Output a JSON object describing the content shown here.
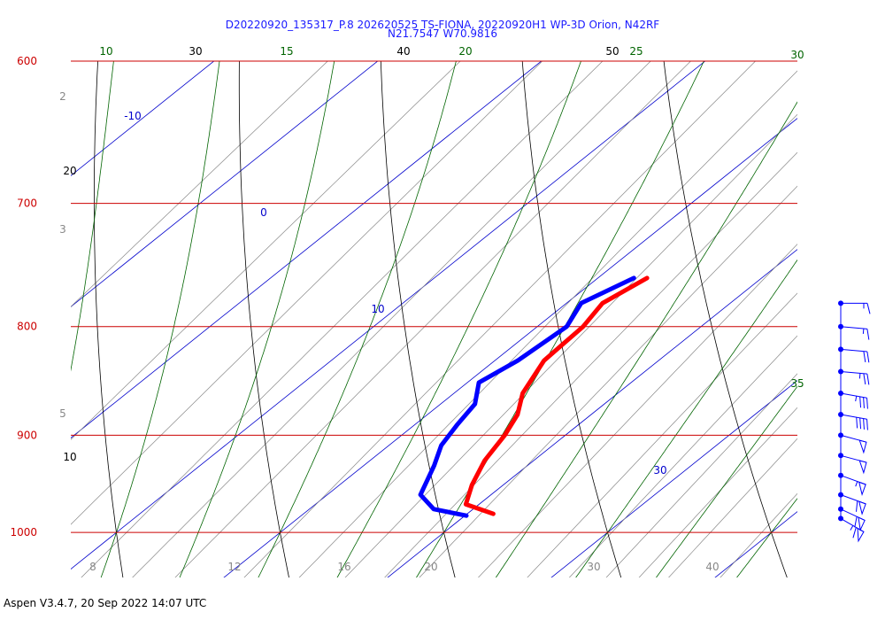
{
  "title_line1": "D20220920_135317_P.8 202620525 TS-FIONA, 20220920H1 WP-3D Orion, N42RF",
  "title_line2": "N21.7547 W70.9816",
  "footer": "Aspen V3.4.7, 20 Sep 2022  14:07 UTC",
  "colors": {
    "isobar": "#cc0000",
    "dry_adiabat": "#000000",
    "moist_adiabat": "#006400",
    "isotherm": "#0000cc",
    "mixing_ratio": "#888888",
    "temperature": "#ff0000",
    "dewpoint": "#0000ff",
    "wind": "#0000ff"
  },
  "chart_data": {
    "type": "line",
    "subtype": "skew-t log-p thermodynamic diagram",
    "pressure_levels": [
      "600",
      "700",
      "800",
      "900",
      "1000"
    ],
    "pressure_range": [
      600,
      1050
    ],
    "isotherm_labels": [
      "-10",
      "0",
      "10",
      "30"
    ],
    "dry_adiabat_labels": [
      "30",
      "40",
      "50",
      "20",
      "10"
    ],
    "moist_adiabat_labels": [
      "10",
      "15",
      "20",
      "25",
      "30",
      "35"
    ],
    "mixing_ratio_top_labels": [
      "2",
      "3",
      "5"
    ],
    "mixing_ratio_bottom_labels": [
      "8",
      "12",
      "16",
      "20",
      "30",
      "40"
    ],
    "series": [
      {
        "kind": "temperature",
        "points": [
          {
            "p": 759,
            "t": 13.0
          },
          {
            "p": 780,
            "t": 12.2
          },
          {
            "p": 800,
            "t": 12.8
          },
          {
            "p": 830,
            "t": 13.0
          },
          {
            "p": 860,
            "t": 14.2
          },
          {
            "p": 880,
            "t": 15.5
          },
          {
            "p": 900,
            "t": 16.3
          },
          {
            "p": 925,
            "t": 17.0
          },
          {
            "p": 950,
            "t": 18.1
          },
          {
            "p": 970,
            "t": 19.2
          },
          {
            "p": 980,
            "t": 21.6
          }
        ]
      },
      {
        "kind": "dewpoint",
        "points": [
          {
            "p": 759,
            "t": 12.2
          },
          {
            "p": 780,
            "t": 10.9
          },
          {
            "p": 800,
            "t": 11.8
          },
          {
            "p": 830,
            "t": 11.4
          },
          {
            "p": 850,
            "t": 10.7
          },
          {
            "p": 870,
            "t": 12.1
          },
          {
            "p": 890,
            "t": 12.6
          },
          {
            "p": 910,
            "t": 13.2
          },
          {
            "p": 930,
            "t": 14.3
          },
          {
            "p": 960,
            "t": 15.7
          },
          {
            "p": 975,
            "t": 17.6
          },
          {
            "p": 982,
            "t": 20.1
          }
        ]
      }
    ],
    "wind_barbs": [
      {
        "p": 780,
        "dir": 90,
        "kt": 15
      },
      {
        "p": 800,
        "dir": 95,
        "kt": 15
      },
      {
        "p": 820,
        "dir": 95,
        "kt": 20
      },
      {
        "p": 840,
        "dir": 95,
        "kt": 25
      },
      {
        "p": 860,
        "dir": 100,
        "kt": 35
      },
      {
        "p": 880,
        "dir": 100,
        "kt": 40
      },
      {
        "p": 900,
        "dir": 105,
        "kt": 50
      },
      {
        "p": 920,
        "dir": 105,
        "kt": 50
      },
      {
        "p": 940,
        "dir": 110,
        "kt": 55
      },
      {
        "p": 960,
        "dir": 110,
        "kt": 60
      },
      {
        "p": 975,
        "dir": 115,
        "kt": 60
      },
      {
        "p": 985,
        "dir": 120,
        "kt": 65
      }
    ]
  }
}
